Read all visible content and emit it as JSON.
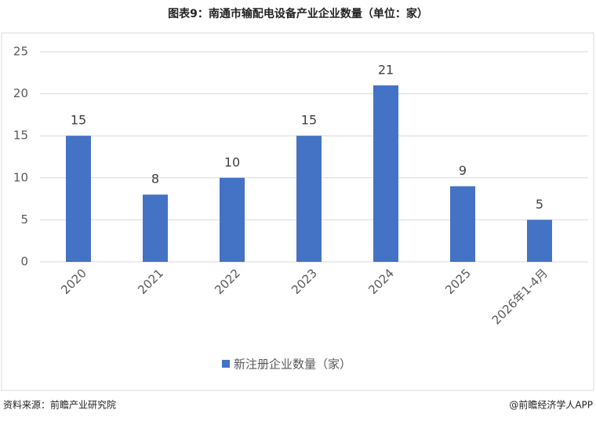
{
  "chart_data": {
    "type": "bar",
    "title": "图表9：南通市输配电设备产业企业数量（单位：家）",
    "categories": [
      "2020",
      "2021",
      "2022",
      "2023",
      "2024",
      "2025",
      "2026年1-4月"
    ],
    "series": [
      {
        "name": "新注册企业数量（家）",
        "color": "#4472c4",
        "values": [
          15,
          8,
          10,
          15,
          21,
          9,
          5
        ]
      }
    ],
    "ylim": [
      0,
      25
    ],
    "yticks": [
      0,
      5,
      10,
      15,
      20,
      25
    ],
    "grid": true,
    "legend": "bottom"
  },
  "footer": {
    "source": "资料来源：前瞻产业研究院",
    "brand": "@前瞻经济学人APP"
  }
}
